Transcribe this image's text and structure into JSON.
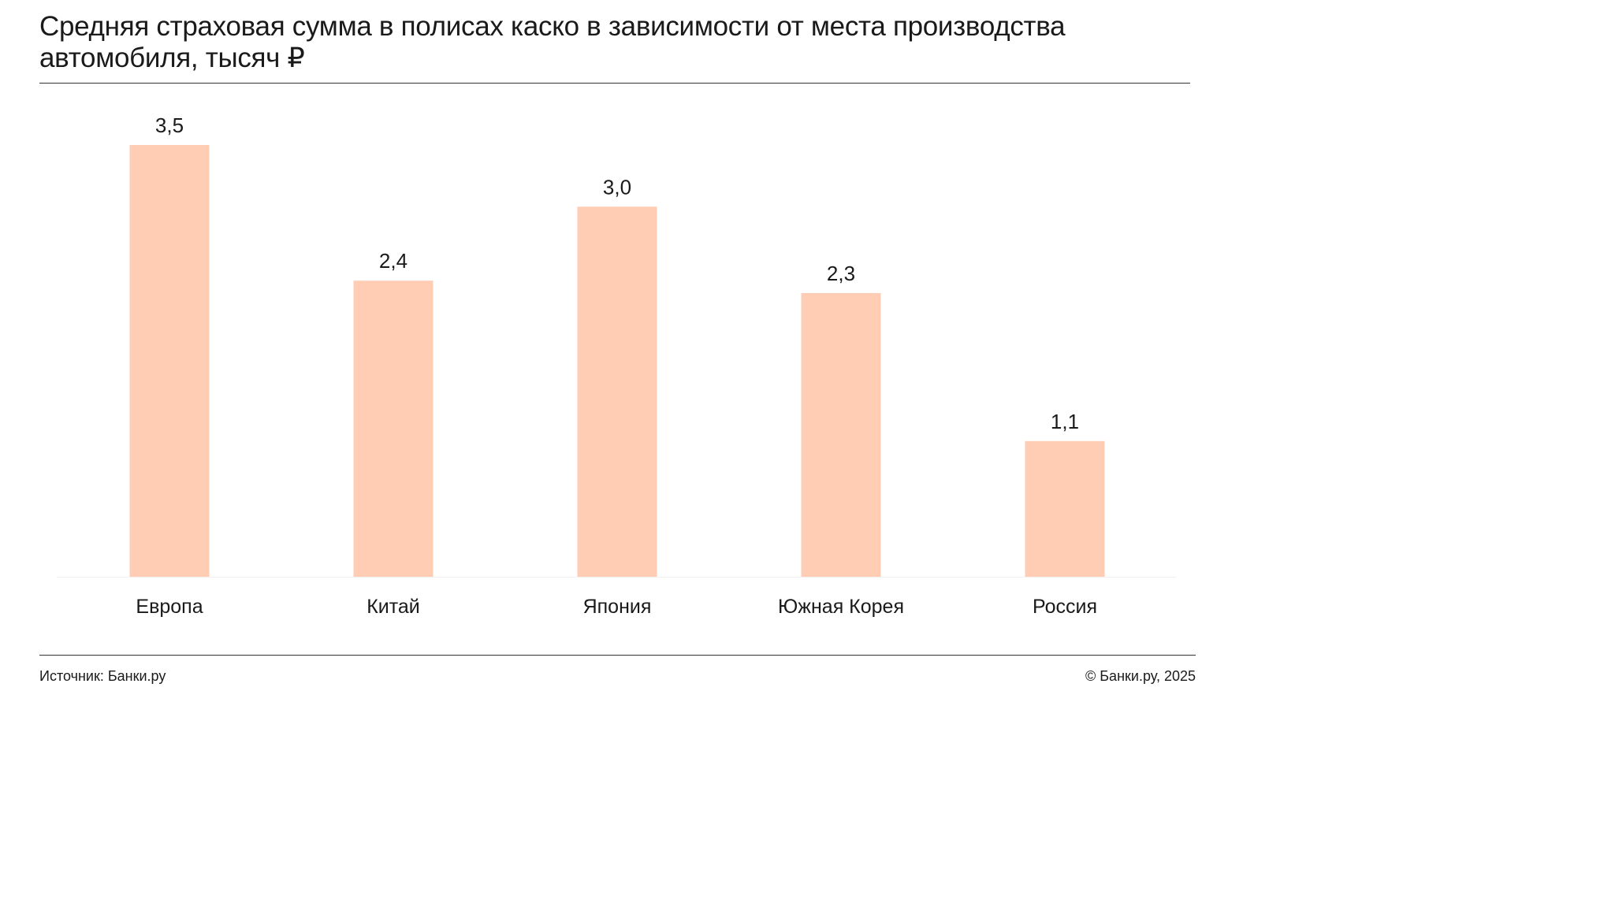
{
  "header": {
    "title": "Средняя страховая сумма в полисах каско в зависимости от места производства автомобиля, тысяч ₽"
  },
  "footer": {
    "source": "Источник: Банки.ру",
    "copyright": "© Банки.ру, 2025"
  },
  "chart_data": {
    "type": "bar",
    "title": "Средняя страховая сумма в полисах каско в зависимости от места производства автомобиля, тысяч ₽",
    "categories": [
      "Европа",
      "Китай",
      "Япония",
      "Южная Корея",
      "Россия"
    ],
    "values": [
      3.5,
      2.4,
      3.0,
      2.3,
      1.1
    ],
    "value_labels": [
      "3,5",
      "2,4",
      "3,0",
      "2,3",
      "1,1"
    ],
    "xlabel": "",
    "ylabel": "",
    "ylim": [
      0,
      3.5
    ],
    "grid": false,
    "legend": "none",
    "colors": {
      "bar": "#FFCDB4",
      "text": "#1a1a1a",
      "baseline": "#f0f0f0"
    }
  }
}
